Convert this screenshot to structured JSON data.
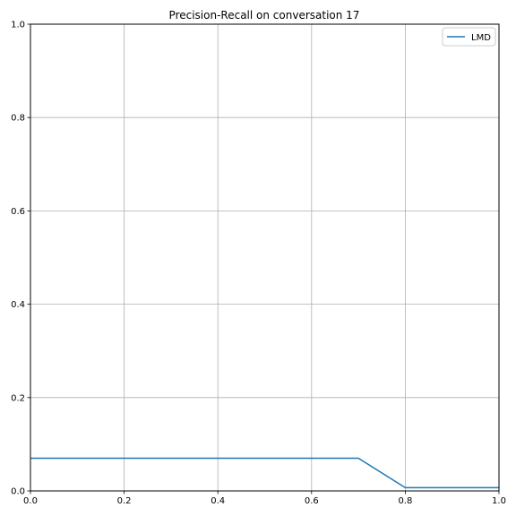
{
  "chart_data": {
    "type": "line",
    "title": "Precision-Recall on conversation 17",
    "xlabel": "",
    "ylabel": "",
    "xlim": [
      0.0,
      1.0
    ],
    "ylim": [
      0.0,
      1.0
    ],
    "xticks": [
      0.0,
      0.2,
      0.4,
      0.6,
      0.8,
      1.0
    ],
    "yticks": [
      0.0,
      0.2,
      0.4,
      0.6,
      0.8,
      1.0
    ],
    "xtick_labels": [
      "0.0",
      "0.2",
      "0.4",
      "0.6",
      "0.8",
      "1.0"
    ],
    "ytick_labels": [
      "0.0",
      "0.2",
      "0.4",
      "0.6",
      "0.8",
      "1.0"
    ],
    "grid": true,
    "legend_position": "top-right",
    "series": [
      {
        "name": "LMD",
        "color": "#1f77b4",
        "x": [
          0.0,
          0.1,
          0.2,
          0.3,
          0.4,
          0.5,
          0.6,
          0.7,
          0.8,
          0.9,
          1.0
        ],
        "y": [
          0.07,
          0.07,
          0.07,
          0.07,
          0.07,
          0.07,
          0.07,
          0.07,
          0.007,
          0.007,
          0.007
        ]
      }
    ]
  }
}
